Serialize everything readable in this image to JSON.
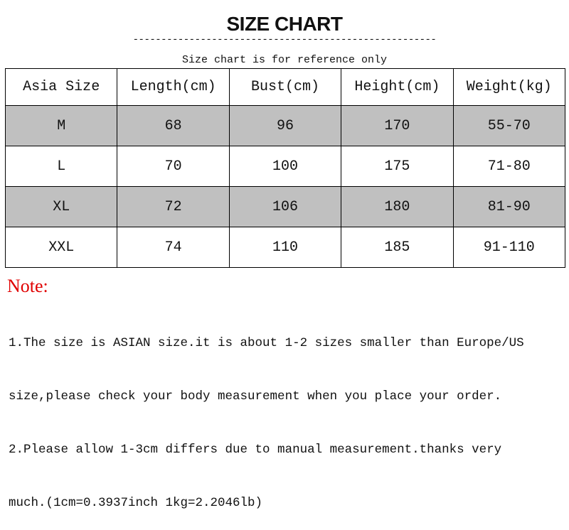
{
  "title": "SIZE CHART",
  "divider": "------------------------------------------------------",
  "subtitle": "Size chart is for reference only",
  "table": {
    "headers": [
      "Asia Size",
      "Length(cm)",
      "Bust(cm)",
      "Height(cm)",
      "Weight(kg)"
    ],
    "rows": [
      [
        "M",
        "68",
        "96",
        "170",
        "55-70"
      ],
      [
        "L",
        "70",
        "100",
        "175",
        "71-80"
      ],
      [
        "XL",
        "72",
        "106",
        "180",
        "81-90"
      ],
      [
        "XXL",
        "74",
        "110",
        "185",
        "91-110"
      ]
    ],
    "stripe_color": "#c0c0c0"
  },
  "note": {
    "title": "Note:",
    "title_color": "#e00000",
    "lines": [
      "1.The size is ASIAN size.it is about 1-2 sizes smaller than Europe/US",
      "size,please check your body measurement when you place your order.",
      "2.Please allow 1-3cm differs due to manual measurement.thanks very",
      "much.(1cm=0.3937inch 1kg=2.2046lb)"
    ]
  }
}
